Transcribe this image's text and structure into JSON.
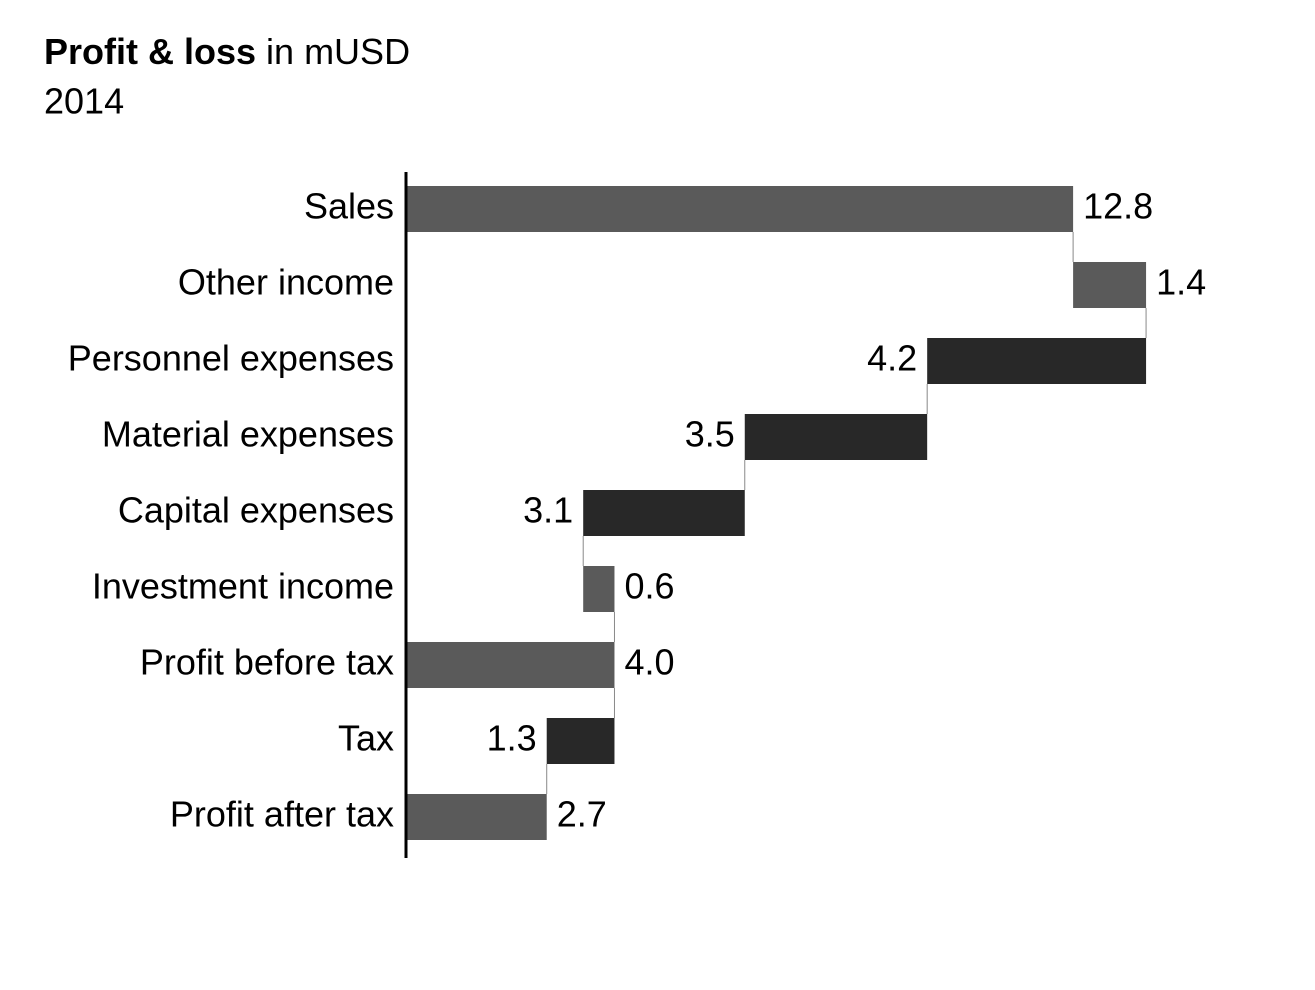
{
  "chart_data": {
    "type": "waterfall",
    "title": "Profit & loss",
    "title_unit": "in mUSD",
    "subtitle": "2014",
    "categories": [
      "Sales",
      "Other income",
      "Personnel expenses",
      "Material expenses",
      "Capital expenses",
      "Investment income",
      "Profit before tax",
      "Tax",
      "Profit after tax"
    ],
    "values": [
      12.8,
      1.4,
      -4.2,
      -3.5,
      -3.1,
      0.6,
      4.0,
      -1.3,
      2.7
    ],
    "value_labels": [
      "12.8",
      "1.4",
      "4.2",
      "3.5",
      "3.1",
      "0.6",
      "4.0",
      "1.3",
      "2.7"
    ],
    "kinds": [
      "total",
      "increase",
      "decrease",
      "decrease",
      "decrease",
      "increase",
      "total",
      "decrease",
      "total"
    ],
    "colors": {
      "total": "#5a5a5a",
      "increase": "#5a5a5a",
      "decrease": "#282828"
    },
    "xlim": [
      0,
      17
    ]
  }
}
